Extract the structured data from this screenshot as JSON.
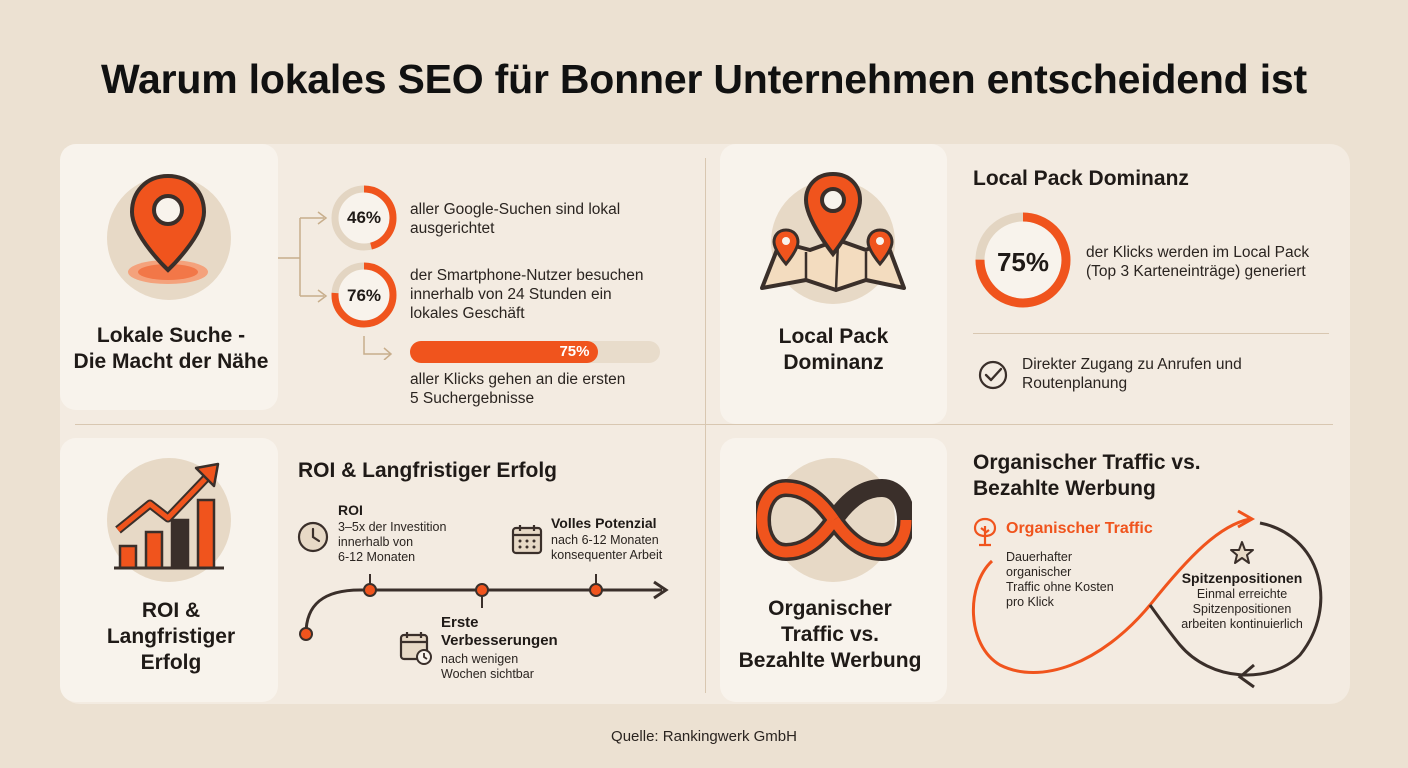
{
  "title": "Warum lokales SEO für Bonner Unternehmen entscheidend ist",
  "colors": {
    "accent": "#f0541d",
    "dark": "#3a2f2a",
    "background": "#ece1d2"
  },
  "lokale_suche": {
    "label_line1": "Lokale Suche -",
    "label_line2": "Die Macht der Nähe",
    "icon": "location-pin-icon",
    "stats": [
      {
        "value": "46%",
        "fraction": 0.46,
        "text_line1": "aller Google-Suchen sind lokal",
        "text_line2": "ausgerichtet"
      },
      {
        "value": "76%",
        "fraction": 0.76,
        "text_line1": "der Smartphone-Nutzer besuchen",
        "text_line2": "innerhalb von 24 Stunden ein",
        "text_line3": "lokales Geschäft"
      }
    ],
    "bar": {
      "value": "75%",
      "fraction": 0.75,
      "text_line1": "aller Klicks gehen an die ersten",
      "text_line2": "5 Suchergebnisse"
    }
  },
  "local_pack": {
    "label_line1": "Local Pack",
    "label_line2": "Dominanz",
    "icon": "map-pins-icon",
    "heading": "Local Pack Dominanz",
    "stat": {
      "value": "75%",
      "fraction": 0.75,
      "text_line1": "der Klicks werden im Local Pack",
      "text_line2": "(Top 3 Karteneinträge) generiert"
    },
    "check_line1": "Direkter Zugang zu Anrufen und",
    "check_line2": "Routenplanung"
  },
  "roi": {
    "label_line1": "ROI &",
    "label_line2": "Langfristiger",
    "label_line3": "Erfolg",
    "icon": "growth-chart-icon",
    "heading": "ROI & Langfristiger Erfolg",
    "roi_title": "ROI",
    "roi_line1": "3–5x der Investition",
    "roi_line2": "innerhalb von",
    "roi_line3": "6-12 Monaten",
    "potenzial_title": "Volles Potenzial",
    "potenzial_line1": "nach 6-12 Monaten",
    "potenzial_line2": "konsequenter Arbeit",
    "erste_title_line1": "Erste",
    "erste_title_line2": "Verbesserungen",
    "erste_line1": "nach wenigen",
    "erste_line2": "Wochen sichtbar"
  },
  "organisch": {
    "label_line1": "Organischer",
    "label_line2": "Traffic vs.",
    "label_line3": "Bezahlte Werbung",
    "icon": "infinity-icon",
    "heading_line1": "Organischer Traffic vs.",
    "heading_line2": "Bezahlte Werbung",
    "traffic_title": "Organischer Traffic",
    "traffic_line1": "Dauerhafter",
    "traffic_line2": "organischer",
    "traffic_line3": "Traffic ohne Kosten",
    "traffic_line4": "pro Klick",
    "spitzen_title": "Spitzenpositionen",
    "spitzen_line1": "Einmal erreichte",
    "spitzen_line2": "Spitzenpositionen",
    "spitzen_line3": "arbeiten kontinuierlich"
  },
  "source": "Quelle: Rankingwerk GmbH"
}
